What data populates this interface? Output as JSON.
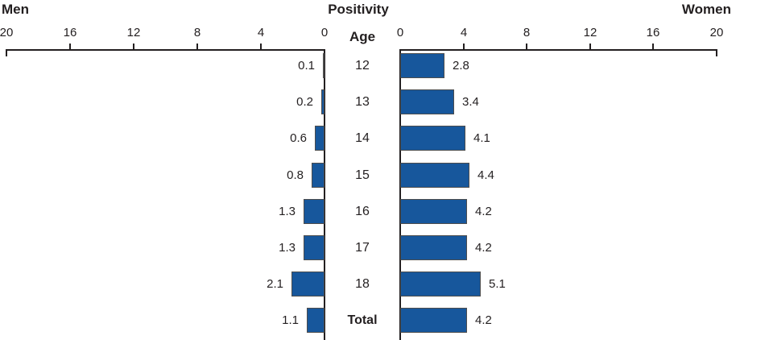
{
  "chart_data": {
    "type": "bar",
    "variant": "butterfly-pyramid",
    "orientation": "horizontal",
    "title": "Positivity",
    "center_axis_label": "Age",
    "categories": [
      "12",
      "13",
      "14",
      "15",
      "16",
      "17",
      "18",
      "Total"
    ],
    "series": [
      {
        "name": "Men",
        "side": "left",
        "values": [
          0.1,
          0.2,
          0.6,
          0.8,
          1.3,
          1.3,
          2.1,
          1.1
        ]
      },
      {
        "name": "Women",
        "side": "right",
        "values": [
          2.8,
          3.4,
          4.1,
          4.4,
          4.2,
          4.2,
          5.1,
          4.2
        ]
      }
    ],
    "axis_ticks": [
      0,
      4,
      8,
      12,
      16,
      20
    ],
    "axis_max": 20,
    "value_label_decimals": 1,
    "grid": false,
    "legend_position": "none",
    "colors": {
      "bar_fill": "#17579C",
      "bar_border": "#4D4D4D",
      "axis": "#231F20",
      "text": "#231F20"
    }
  }
}
